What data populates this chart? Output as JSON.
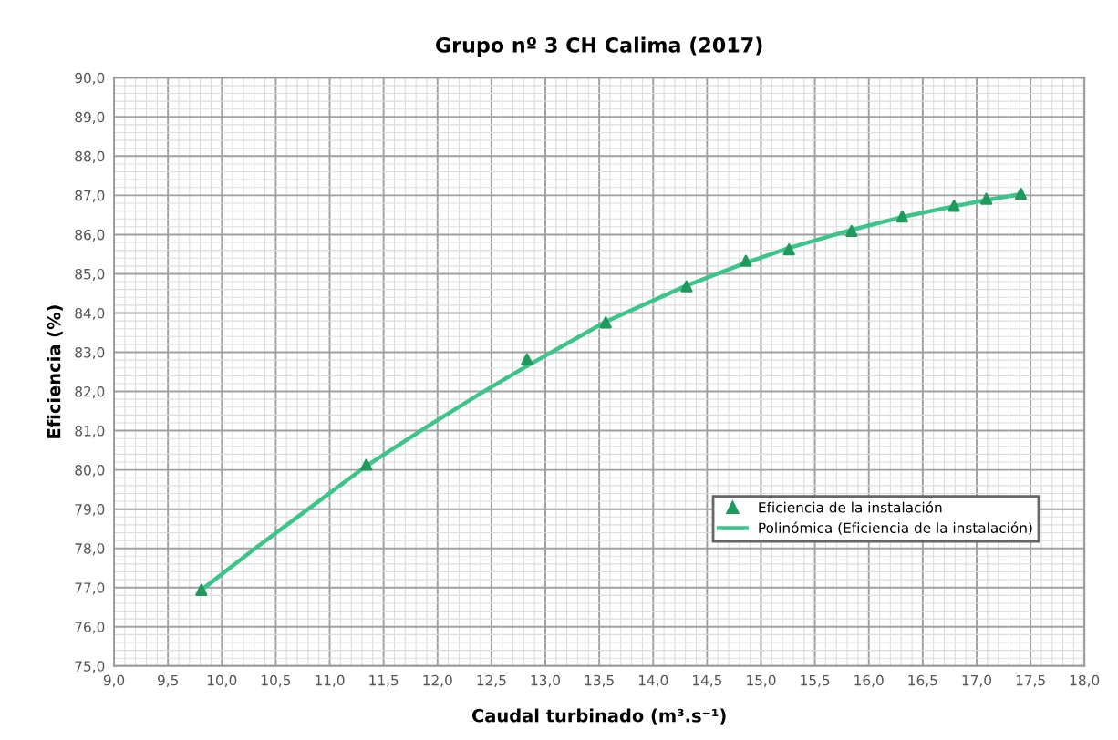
{
  "chart_data": {
    "type": "scatter",
    "title": "Grupo nº 3 CH Calima (2017)",
    "xlabel": "Caudal turbinado (m³.s⁻¹)",
    "ylabel": "Eficiencia (%)",
    "series": [
      {
        "name": "Eficiencia de la instalación",
        "marker": "triangle",
        "color": "#1f9a5c",
        "x": [
          9.81,
          11.34,
          12.83,
          13.56,
          14.31,
          14.86,
          15.26,
          15.84,
          16.31,
          16.79,
          17.09,
          17.41
        ],
        "values": [
          76.94,
          80.13,
          82.82,
          83.76,
          84.68,
          85.33,
          85.62,
          86.09,
          86.46,
          86.73,
          86.91,
          87.04
        ]
      },
      {
        "name": "Polinómica (Eficiencia de la instalación)",
        "type": "line",
        "marker": "none",
        "line_style": "solid",
        "color": "#3cc48a",
        "x": [
          9.81,
          10.3,
          10.8,
          11.34,
          11.9,
          12.4,
          12.83,
          13.56,
          14.31,
          14.86,
          15.26,
          15.84,
          16.31,
          16.79,
          17.09,
          17.41
        ],
        "values": [
          76.94,
          77.98,
          79.0,
          80.1,
          81.1,
          81.95,
          82.65,
          83.78,
          84.7,
          85.28,
          85.66,
          86.12,
          86.45,
          86.72,
          86.88,
          87.03
        ]
      }
    ],
    "xlim": [
      9.0,
      18.0
    ],
    "xticks": [
      {
        "value": 9.0,
        "label": "9,0"
      },
      {
        "value": 9.5,
        "label": "9,5"
      },
      {
        "value": 10.0,
        "label": "10,0"
      },
      {
        "value": 10.5,
        "label": "10,5"
      },
      {
        "value": 11.0,
        "label": "11,0"
      },
      {
        "value": 11.5,
        "label": "11,5"
      },
      {
        "value": 12.0,
        "label": "12,0"
      },
      {
        "value": 12.5,
        "label": "12,5"
      },
      {
        "value": 13.0,
        "label": "13,0"
      },
      {
        "value": 13.5,
        "label": "13,5"
      },
      {
        "value": 14.0,
        "label": "14,0"
      },
      {
        "value": 14.5,
        "label": "14,5"
      },
      {
        "value": 15.0,
        "label": "15,0"
      },
      {
        "value": 15.5,
        "label": "15,5"
      },
      {
        "value": 16.0,
        "label": "16,0"
      },
      {
        "value": 16.5,
        "label": "16,5"
      },
      {
        "value": 17.0,
        "label": "17,0"
      },
      {
        "value": 17.5,
        "label": "17,5"
      },
      {
        "value": 18.0,
        "label": "18,0"
      }
    ],
    "ylim": [
      75.0,
      90.0
    ],
    "yticks": [
      {
        "value": 75.0,
        "label": "75,0"
      },
      {
        "value": 76.0,
        "label": "76,0"
      },
      {
        "value": 77.0,
        "label": "77,0"
      },
      {
        "value": 78.0,
        "label": "78,0"
      },
      {
        "value": 79.0,
        "label": "79,0"
      },
      {
        "value": 80.0,
        "label": "80,0"
      },
      {
        "value": 81.0,
        "label": "81,0"
      },
      {
        "value": 82.0,
        "label": "82,0"
      },
      {
        "value": 83.0,
        "label": "83,0"
      },
      {
        "value": 84.0,
        "label": "84,0"
      },
      {
        "value": 85.0,
        "label": "85,0"
      },
      {
        "value": 86.0,
        "label": "86,0"
      },
      {
        "value": 87.0,
        "label": "87,0"
      },
      {
        "value": 88.0,
        "label": "88,0"
      },
      {
        "value": 89.0,
        "label": "89,0"
      },
      {
        "value": 90.0,
        "label": "90,0"
      }
    ],
    "grid": true,
    "legend": "bottom right"
  }
}
